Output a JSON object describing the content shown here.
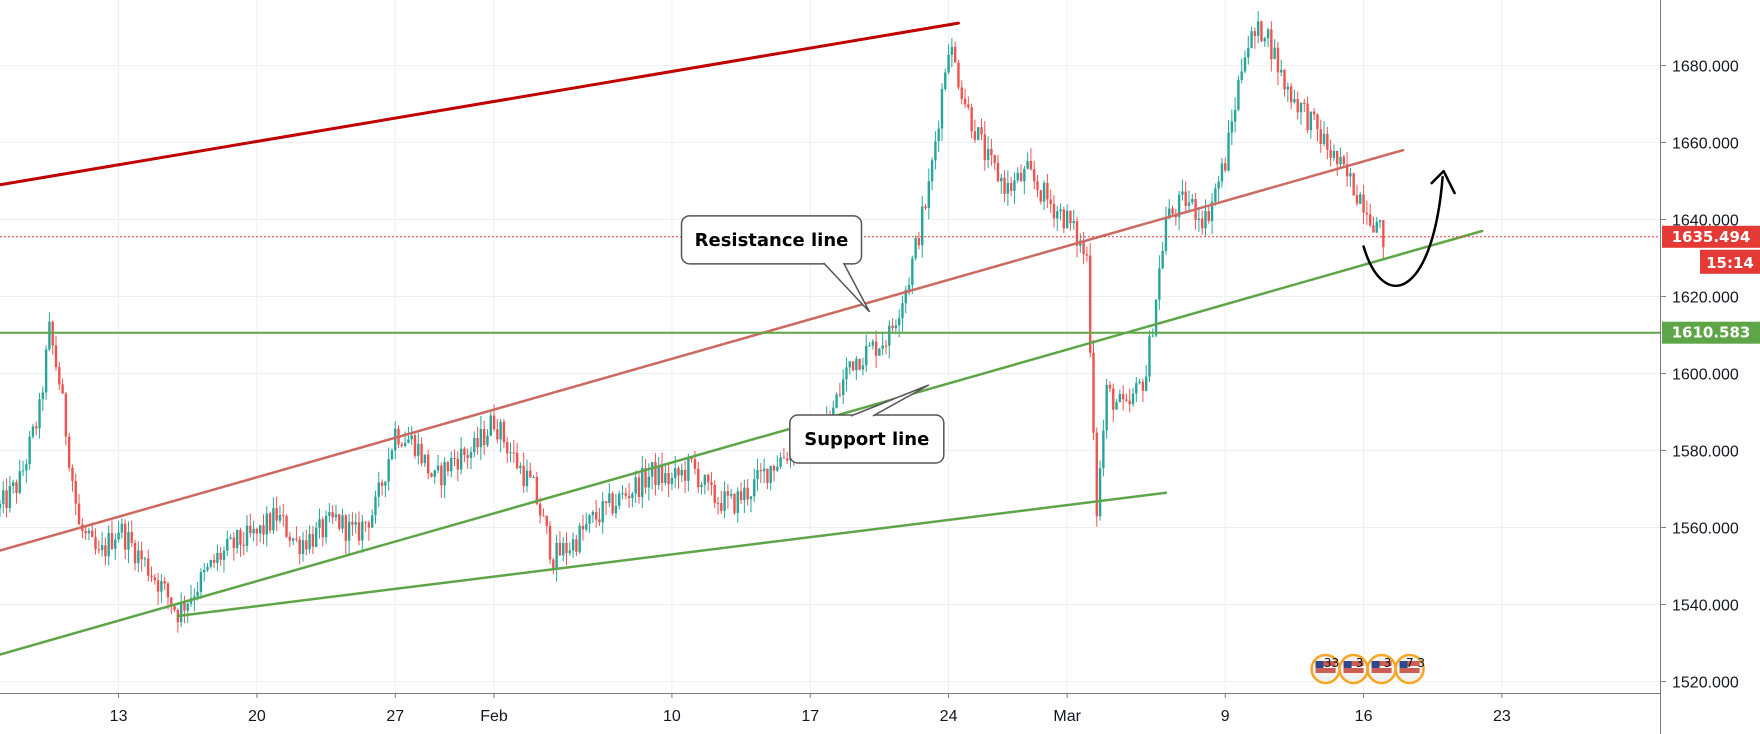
{
  "chart_data": {
    "type": "candlestick",
    "title": "",
    "xlabel": "",
    "ylabel": "",
    "x_ticks": [
      "13",
      "20",
      "27",
      "Feb",
      "10",
      "17",
      "24",
      "Mar",
      "9",
      "16",
      "23"
    ],
    "y_ticks": [
      "1520.000",
      "1540.000",
      "1560.000",
      "1580.000",
      "1600.000",
      "1620.000",
      "1640.000",
      "1660.000",
      "1680.000"
    ],
    "ylim": [
      1517,
      1697
    ],
    "xlim": [
      "2020-01-07",
      "2020-03-31"
    ],
    "grid": true,
    "colors": {
      "up": "#26a69a",
      "down": "#ef5350",
      "resistance": "#c0392b",
      "support": "#5ea547",
      "price_line": "#e53935",
      "dark_red": "#c00000"
    },
    "price_path": [
      [
        "2020-01-07",
        1565
      ],
      [
        "2020-01-08",
        1572
      ],
      [
        "2020-01-09",
        1590
      ],
      [
        "2020-01-09T12:00",
        1611
      ],
      [
        "2020-01-10",
        1598
      ],
      [
        "2020-01-11",
        1560
      ],
      [
        "2020-01-12",
        1552
      ],
      [
        "2020-01-13",
        1560
      ],
      [
        "2020-01-14",
        1553
      ],
      [
        "2020-01-15",
        1546
      ],
      [
        "2020-01-16",
        1538
      ],
      [
        "2020-01-17",
        1545
      ],
      [
        "2020-01-18",
        1552
      ],
      [
        "2020-01-19",
        1556
      ],
      [
        "2020-01-20",
        1558
      ],
      [
        "2020-01-21",
        1563
      ],
      [
        "2020-01-22",
        1556
      ],
      [
        "2020-01-23",
        1558
      ],
      [
        "2020-01-24",
        1562
      ],
      [
        "2020-01-25",
        1558
      ],
      [
        "2020-01-26",
        1565
      ],
      [
        "2020-01-27",
        1585
      ],
      [
        "2020-01-28",
        1582
      ],
      [
        "2020-01-29",
        1572
      ],
      [
        "2020-01-30",
        1578
      ],
      [
        "2020-01-31",
        1580
      ],
      [
        "2020-02-01",
        1588
      ],
      [
        "2020-02-02",
        1578
      ],
      [
        "2020-02-03",
        1570
      ],
      [
        "2020-02-04",
        1552
      ],
      [
        "2020-02-05",
        1556
      ],
      [
        "2020-02-06",
        1562
      ],
      [
        "2020-02-07",
        1566
      ],
      [
        "2020-02-08",
        1570
      ],
      [
        "2020-02-09",
        1574
      ],
      [
        "2020-02-10",
        1572
      ],
      [
        "2020-02-11",
        1576
      ],
      [
        "2020-02-12",
        1568
      ],
      [
        "2020-02-13",
        1566
      ],
      [
        "2020-02-14",
        1570
      ],
      [
        "2020-02-15",
        1576
      ],
      [
        "2020-02-16",
        1580
      ],
      [
        "2020-02-17",
        1582
      ],
      [
        "2020-02-18",
        1588
      ],
      [
        "2020-02-19",
        1603
      ],
      [
        "2020-02-20",
        1606
      ],
      [
        "2020-02-21",
        1610
      ],
      [
        "2020-02-22",
        1625
      ],
      [
        "2020-02-23",
        1648
      ],
      [
        "2020-02-24",
        1686
      ],
      [
        "2020-02-25",
        1668
      ],
      [
        "2020-02-26",
        1655
      ],
      [
        "2020-02-27",
        1648
      ],
      [
        "2020-02-28",
        1652
      ],
      [
        "2020-02-29",
        1645
      ],
      [
        "2020-03-01",
        1640
      ],
      [
        "2020-03-02",
        1630
      ],
      [
        "2020-03-02T12:00",
        1565
      ],
      [
        "2020-03-03",
        1595
      ],
      [
        "2020-03-04",
        1590
      ],
      [
        "2020-03-05",
        1600
      ],
      [
        "2020-03-06",
        1640
      ],
      [
        "2020-03-07",
        1645
      ],
      [
        "2020-03-08",
        1640
      ],
      [
        "2020-03-09",
        1655
      ],
      [
        "2020-03-10",
        1685
      ],
      [
        "2020-03-11",
        1690
      ],
      [
        "2020-03-12",
        1675
      ],
      [
        "2020-03-13",
        1668
      ],
      [
        "2020-03-14",
        1660
      ],
      [
        "2020-03-15",
        1652
      ],
      [
        "2020-03-16",
        1645
      ],
      [
        "2020-03-16T12:00",
        1640
      ],
      [
        "2020-03-17",
        1635
      ]
    ],
    "price_lines": [
      {
        "name": "",
        "value": 1635.494,
        "label": "1635.494",
        "sub_label": "15:14",
        "style": "dotted",
        "color": "#e53935"
      },
      {
        "name": "",
        "value": 1610.583,
        "label": "1610.583",
        "style": "solid",
        "color": "#5ea547"
      }
    ],
    "trendlines": [
      {
        "color": "#c00000",
        "points": [
          [
            "2020-01-07",
            1649
          ],
          [
            "2020-02-24T12:00",
            1691
          ]
        ]
      },
      {
        "color": "#cd6a60",
        "points": [
          [
            "2020-01-07",
            1554
          ],
          [
            "2020-03-18",
            1658
          ]
        ]
      },
      {
        "color": "#5ea547",
        "points": [
          [
            "2020-01-07",
            1527
          ],
          [
            "2020-03-22",
            1637
          ]
        ]
      },
      {
        "color": "#5ea547",
        "points": [
          [
            "2020-01-16",
            1537
          ],
          [
            "2020-03-06",
            1569
          ]
        ]
      }
    ],
    "callouts": [
      {
        "text": "Resistance line",
        "anchor": [
          "2020-02-20",
          1616
        ]
      },
      {
        "text": "Support line",
        "anchor": [
          "2020-02-23",
          1597
        ]
      }
    ],
    "annotation_arrow": {
      "points": [
        [
          "2020-03-16",
          1633
        ],
        [
          "2020-03-17",
          1626
        ],
        [
          "2020-03-19",
          1630
        ],
        [
          "2020-03-20",
          1651
        ]
      ]
    },
    "events": [
      "33",
      "3",
      "3",
      "7 3"
    ]
  }
}
